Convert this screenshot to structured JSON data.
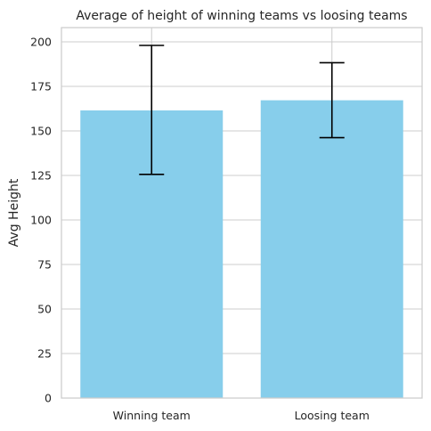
{
  "chart_data": {
    "type": "bar",
    "title": "Average of height of winning teams vs loosing teams",
    "xlabel": "",
    "ylabel": "Avg Height",
    "categories": [
      "Winning team",
      "Loosing team"
    ],
    "values": [
      161.5,
      167.2
    ],
    "error_low": [
      125.6,
      146.2
    ],
    "error_high": [
      198.0,
      188.3
    ],
    "ylim": [
      0,
      208
    ],
    "yticks": [
      0,
      25,
      50,
      75,
      100,
      125,
      150,
      175,
      200
    ],
    "grid": true,
    "bar_color": "#87CEEB",
    "error_color": "#000000",
    "grid_color": "#CCCCCC",
    "axes_edge_color": "#CCCCCC"
  }
}
